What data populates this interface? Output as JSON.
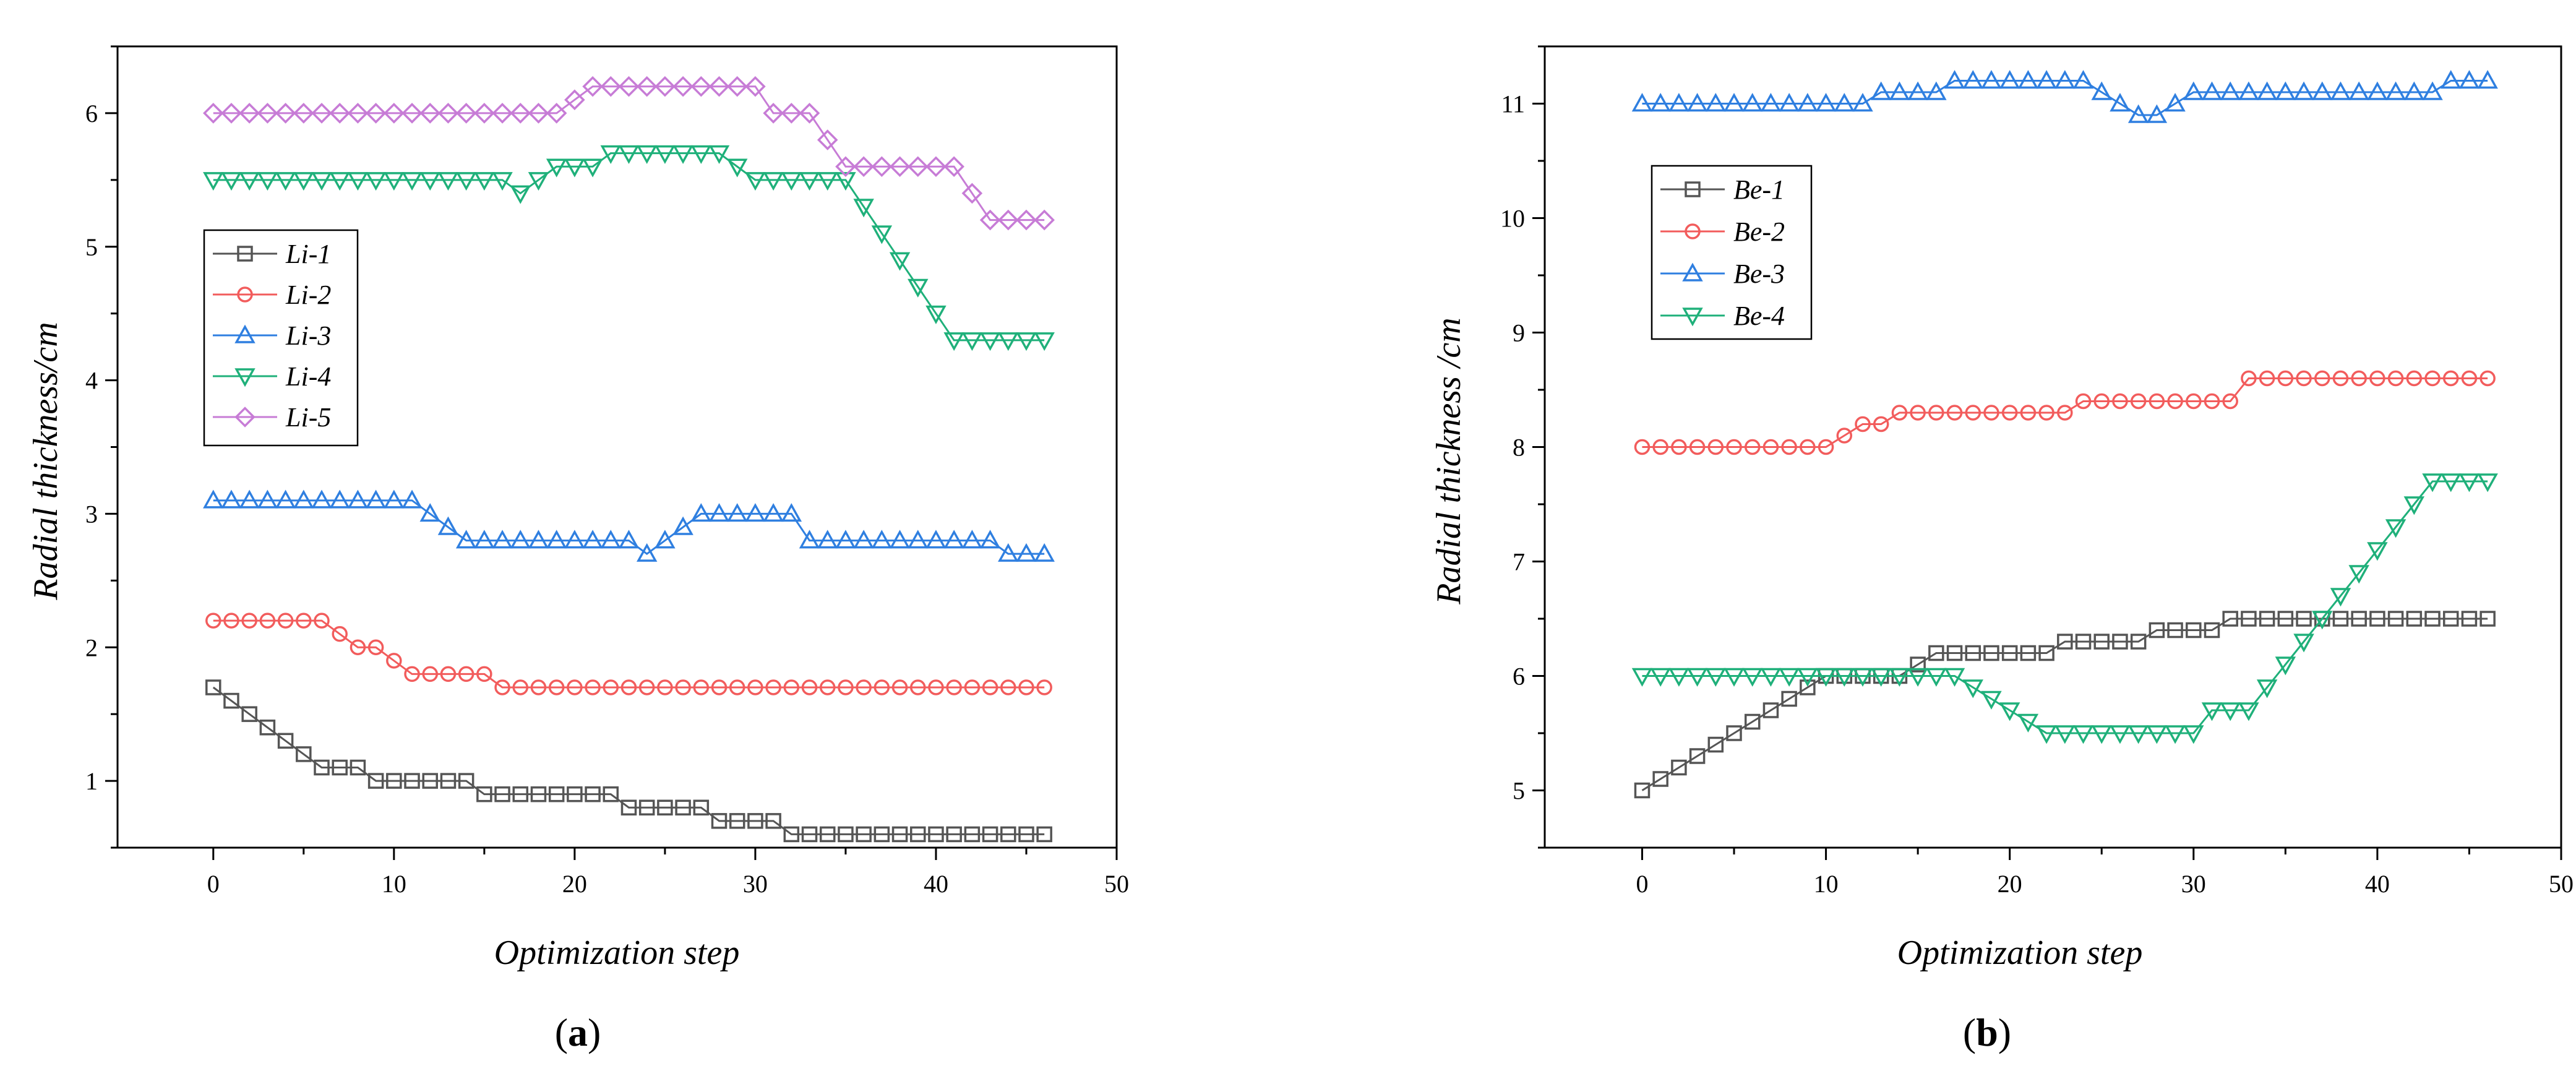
{
  "chart_data": [
    {
      "type": "line",
      "panel_label": "a",
      "xlabel": "Optimization step",
      "ylabel": "Radial thickness/cm",
      "xlim": [
        -5.3,
        50
      ],
      "ylim": [
        0.5,
        6.5
      ],
      "xticks": [
        0,
        10,
        20,
        30,
        40,
        50
      ],
      "yticks": [
        1,
        2,
        3,
        4,
        5,
        6
      ],
      "legend_position": "center-left",
      "series": [
        {
          "name": "Li-1",
          "color": "#555555",
          "marker": "square",
          "values": [
            1.7,
            1.6,
            1.5,
            1.4,
            1.3,
            1.2,
            1.1,
            1.1,
            1.1,
            1.0,
            1.0,
            1.0,
            1.0,
            1.0,
            1.0,
            0.9,
            0.9,
            0.9,
            0.9,
            0.9,
            0.9,
            0.9,
            0.9,
            0.8,
            0.8,
            0.8,
            0.8,
            0.8,
            0.7,
            0.7,
            0.7,
            0.7,
            0.6,
            0.6,
            0.6,
            0.6,
            0.6,
            0.6,
            0.6,
            0.6,
            0.6,
            0.6,
            0.6,
            0.6,
            0.6,
            0.6,
            0.6
          ]
        },
        {
          "name": "Li-2",
          "color": "#f25c5c",
          "marker": "circle",
          "values": [
            2.2,
            2.2,
            2.2,
            2.2,
            2.2,
            2.2,
            2.2,
            2.1,
            2.0,
            2.0,
            1.9,
            1.8,
            1.8,
            1.8,
            1.8,
            1.8,
            1.7,
            1.7,
            1.7,
            1.7,
            1.7,
            1.7,
            1.7,
            1.7,
            1.7,
            1.7,
            1.7,
            1.7,
            1.7,
            1.7,
            1.7,
            1.7,
            1.7,
            1.7,
            1.7,
            1.7,
            1.7,
            1.7,
            1.7,
            1.7,
            1.7,
            1.7,
            1.7,
            1.7,
            1.7,
            1.7,
            1.7
          ]
        },
        {
          "name": "Li-3",
          "color": "#2f7fe0",
          "marker": "triangle-up",
          "values": [
            3.1,
            3.1,
            3.1,
            3.1,
            3.1,
            3.1,
            3.1,
            3.1,
            3.1,
            3.1,
            3.1,
            3.1,
            3.0,
            2.9,
            2.8,
            2.8,
            2.8,
            2.8,
            2.8,
            2.8,
            2.8,
            2.8,
            2.8,
            2.8,
            2.7,
            2.8,
            2.9,
            3.0,
            3.0,
            3.0,
            3.0,
            3.0,
            3.0,
            2.8,
            2.8,
            2.8,
            2.8,
            2.8,
            2.8,
            2.8,
            2.8,
            2.8,
            2.8,
            2.8,
            2.7,
            2.7,
            2.7
          ]
        },
        {
          "name": "Li-4",
          "color": "#1fb07a",
          "marker": "triangle-down",
          "values": [
            5.5,
            5.5,
            5.5,
            5.5,
            5.5,
            5.5,
            5.5,
            5.5,
            5.5,
            5.5,
            5.5,
            5.5,
            5.5,
            5.5,
            5.5,
            5.5,
            5.5,
            5.4,
            5.5,
            5.6,
            5.6,
            5.6,
            5.7,
            5.7,
            5.7,
            5.7,
            5.7,
            5.7,
            5.7,
            5.6,
            5.5,
            5.5,
            5.5,
            5.5,
            5.5,
            5.5,
            5.3,
            5.1,
            4.9,
            4.7,
            4.5,
            4.3,
            4.3,
            4.3,
            4.3,
            4.3,
            4.3
          ]
        },
        {
          "name": "Li-5",
          "color": "#c77cd6",
          "marker": "diamond",
          "values": [
            6.0,
            6.0,
            6.0,
            6.0,
            6.0,
            6.0,
            6.0,
            6.0,
            6.0,
            6.0,
            6.0,
            6.0,
            6.0,
            6.0,
            6.0,
            6.0,
            6.0,
            6.0,
            6.0,
            6.0,
            6.1,
            6.2,
            6.2,
            6.2,
            6.2,
            6.2,
            6.2,
            6.2,
            6.2,
            6.2,
            6.2,
            6.0,
            6.0,
            6.0,
            5.8,
            5.6,
            5.6,
            5.6,
            5.6,
            5.6,
            5.6,
            5.6,
            5.4,
            5.2,
            5.2,
            5.2,
            5.2
          ]
        }
      ]
    },
    {
      "type": "line",
      "panel_label": "b",
      "xlabel": "Optimization step",
      "ylabel": "Radial thickness /cm",
      "xlim": [
        -5.3,
        50
      ],
      "ylim": [
        4.5,
        11.5
      ],
      "xticks": [
        0,
        10,
        20,
        30,
        40,
        50
      ],
      "yticks": [
        5,
        6,
        7,
        8,
        9,
        10,
        11
      ],
      "legend_position": "top-left",
      "series": [
        {
          "name": "Be-1",
          "color": "#555555",
          "marker": "square",
          "values": [
            5.0,
            5.1,
            5.2,
            5.3,
            5.4,
            5.5,
            5.6,
            5.7,
            5.8,
            5.9,
            6.0,
            6.0,
            6.0,
            6.0,
            6.0,
            6.1,
            6.2,
            6.2,
            6.2,
            6.2,
            6.2,
            6.2,
            6.2,
            6.3,
            6.3,
            6.3,
            6.3,
            6.3,
            6.4,
            6.4,
            6.4,
            6.4,
            6.5,
            6.5,
            6.5,
            6.5,
            6.5,
            6.5,
            6.5,
            6.5,
            6.5,
            6.5,
            6.5,
            6.5,
            6.5,
            6.5,
            6.5
          ]
        },
        {
          "name": "Be-2",
          "color": "#f25c5c",
          "marker": "circle",
          "values": [
            8.0,
            8.0,
            8.0,
            8.0,
            8.0,
            8.0,
            8.0,
            8.0,
            8.0,
            8.0,
            8.0,
            8.1,
            8.2,
            8.2,
            8.3,
            8.3,
            8.3,
            8.3,
            8.3,
            8.3,
            8.3,
            8.3,
            8.3,
            8.3,
            8.4,
            8.4,
            8.4,
            8.4,
            8.4,
            8.4,
            8.4,
            8.4,
            8.4,
            8.6,
            8.6,
            8.6,
            8.6,
            8.6,
            8.6,
            8.6,
            8.6,
            8.6,
            8.6,
            8.6,
            8.6,
            8.6,
            8.6
          ]
        },
        {
          "name": "Be-3",
          "color": "#2f7fe0",
          "marker": "triangle-up",
          "values": [
            11.0,
            11.0,
            11.0,
            11.0,
            11.0,
            11.0,
            11.0,
            11.0,
            11.0,
            11.0,
            11.0,
            11.0,
            11.0,
            11.1,
            11.1,
            11.1,
            11.1,
            11.2,
            11.2,
            11.2,
            11.2,
            11.2,
            11.2,
            11.2,
            11.2,
            11.1,
            11.0,
            10.9,
            10.9,
            11.0,
            11.1,
            11.1,
            11.1,
            11.1,
            11.1,
            11.1,
            11.1,
            11.1,
            11.1,
            11.1,
            11.1,
            11.1,
            11.1,
            11.1,
            11.2,
            11.2,
            11.2
          ]
        },
        {
          "name": "Be-4",
          "color": "#1fb07a",
          "marker": "triangle-down",
          "values": [
            6.0,
            6.0,
            6.0,
            6.0,
            6.0,
            6.0,
            6.0,
            6.0,
            6.0,
            6.0,
            6.0,
            6.0,
            6.0,
            6.0,
            6.0,
            6.0,
            6.0,
            6.0,
            5.9,
            5.8,
            5.7,
            5.6,
            5.5,
            5.5,
            5.5,
            5.5,
            5.5,
            5.5,
            5.5,
            5.5,
            5.5,
            5.7,
            5.7,
            5.7,
            5.9,
            6.1,
            6.3,
            6.5,
            6.7,
            6.9,
            7.1,
            7.3,
            7.5,
            7.7,
            7.7,
            7.7,
            7.7
          ]
        }
      ]
    }
  ]
}
